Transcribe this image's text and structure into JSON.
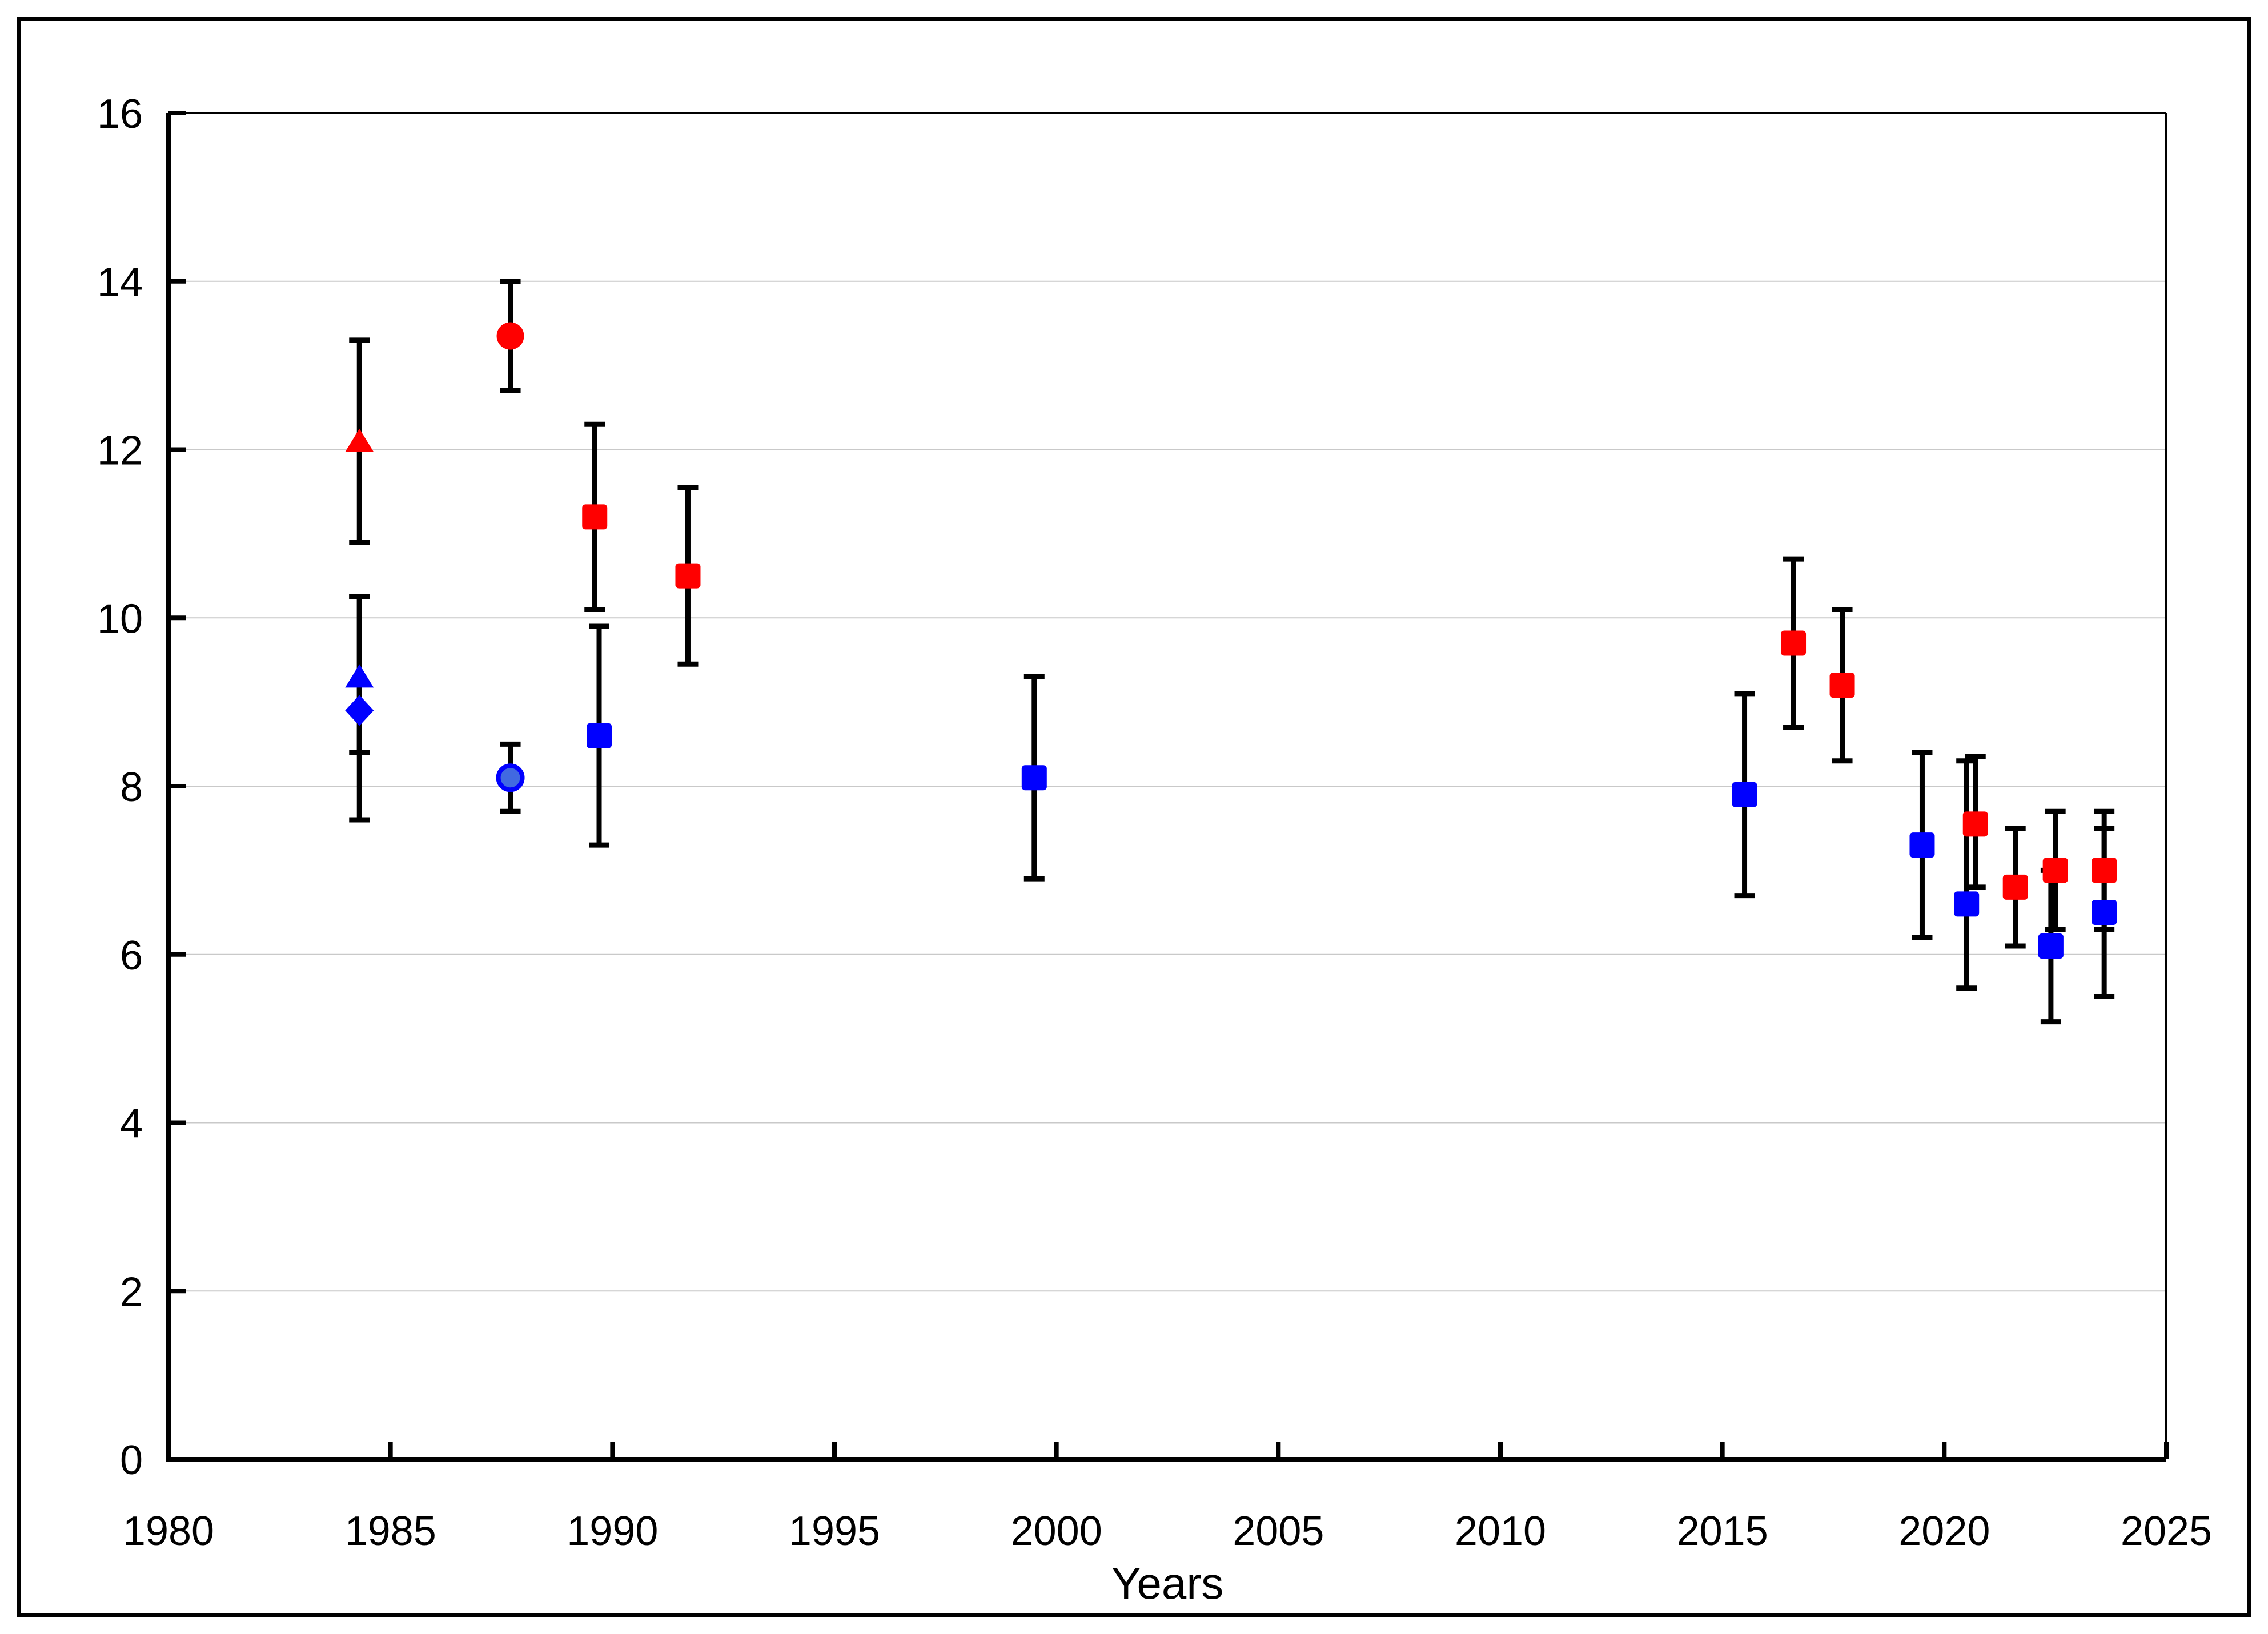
{
  "figure": {
    "background": "#FFFFFF",
    "frame_color": "#000000"
  },
  "chart_data": {
    "type": "scatter",
    "title": "",
    "xlabel": "Years",
    "ylabel": "",
    "xlim": [
      1980,
      2025
    ],
    "ylim": [
      0,
      16
    ],
    "xticks": [
      1980,
      1985,
      1990,
      1995,
      2000,
      2005,
      2010,
      2015,
      2020,
      2025
    ],
    "yticks": [
      0,
      2,
      4,
      6,
      8,
      10,
      12,
      14,
      16
    ],
    "grid": "horizontal",
    "gridline_color": "#C9C9C9",
    "axis_color": "#000000",
    "error_bar_color": "#000000",
    "legend": "none",
    "series": [
      {
        "name": "blue-series",
        "color": "#0000FF",
        "light_fill": "#4169E1",
        "points": [
          {
            "year": 1984.3,
            "value": 9.3,
            "err_low": 8.4,
            "err_high": 10.25,
            "marker": "triangle"
          },
          {
            "year": 1984.3,
            "value": 8.9,
            "err_low": 7.6,
            "err_high": 10.25,
            "marker": "diamond"
          },
          {
            "year": 1987.7,
            "value": 8.1,
            "err_low": 7.7,
            "err_high": 8.5,
            "marker": "circle-light"
          },
          {
            "year": 1989.7,
            "value": 8.6,
            "err_low": 7.3,
            "err_high": 9.9,
            "marker": "square"
          },
          {
            "year": 1999.5,
            "value": 8.1,
            "err_low": 6.9,
            "err_high": 9.3,
            "marker": "square"
          },
          {
            "year": 2015.5,
            "value": 7.9,
            "err_low": 6.7,
            "err_high": 9.1,
            "marker": "square"
          },
          {
            "year": 2019.5,
            "value": 7.3,
            "err_low": 6.2,
            "err_high": 8.4,
            "marker": "square"
          },
          {
            "year": 2020.5,
            "value": 6.6,
            "err_low": 5.6,
            "err_high": 8.3,
            "marker": "square"
          },
          {
            "year": 2022.4,
            "value": 6.1,
            "err_low": 5.2,
            "err_high": 7.0,
            "marker": "square"
          },
          {
            "year": 2023.6,
            "value": 6.5,
            "err_low": 5.5,
            "err_high": 7.5,
            "marker": "square"
          }
        ]
      },
      {
        "name": "red-series",
        "color": "#FF0000",
        "points": [
          {
            "year": 1984.3,
            "value": 12.1,
            "err_low": 10.9,
            "err_high": 13.3,
            "marker": "triangle"
          },
          {
            "year": 1987.7,
            "value": 13.35,
            "err_low": 12.7,
            "err_high": 14.0,
            "marker": "circle"
          },
          {
            "year": 1989.6,
            "value": 11.2,
            "err_low": 10.1,
            "err_high": 12.3,
            "marker": "square"
          },
          {
            "year": 1991.7,
            "value": 10.5,
            "err_low": 9.45,
            "err_high": 11.55,
            "marker": "square"
          },
          {
            "year": 2016.6,
            "value": 9.7,
            "err_low": 8.7,
            "err_high": 10.7,
            "marker": "square"
          },
          {
            "year": 2017.7,
            "value": 9.2,
            "err_low": 8.3,
            "err_high": 10.1,
            "marker": "square"
          },
          {
            "year": 2020.7,
            "value": 7.55,
            "err_low": 6.8,
            "err_high": 8.35,
            "marker": "square"
          },
          {
            "year": 2021.6,
            "value": 6.8,
            "err_low": 6.1,
            "err_high": 7.5,
            "marker": "square"
          },
          {
            "year": 2022.5,
            "value": 7.0,
            "err_low": 6.3,
            "err_high": 7.7,
            "marker": "square"
          },
          {
            "year": 2023.6,
            "value": 7.0,
            "err_low": 6.3,
            "err_high": 7.7,
            "marker": "square"
          }
        ]
      }
    ]
  }
}
